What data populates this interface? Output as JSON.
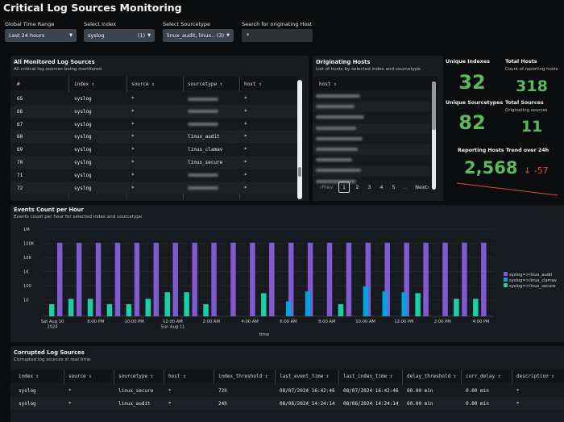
{
  "dashboard": {
    "title": "Critical Log Sources Monitoring"
  },
  "filters": {
    "time_label": "Global Time Range",
    "time_value": "Last 24 hours",
    "index_label": "Select Index",
    "index_value": "syslog",
    "index_count": "(1)",
    "sourcetype_label": "Select Sourcetype",
    "sourcetype_value": "linux_audit, linux...",
    "sourcetype_count": "(3)",
    "host_label": "Search for originating Host",
    "host_value": "*"
  },
  "monitored": {
    "title": "All Monitored Log Sources",
    "subtitle": "All critical log sources being monitored",
    "columns": [
      "#",
      "index",
      "source",
      "sourcetype",
      "host"
    ],
    "rows": [
      {
        "n": "65",
        "index": "syslog",
        "source": "*",
        "sourcetype": "",
        "host": "*"
      },
      {
        "n": "66",
        "index": "syslog",
        "source": "*",
        "sourcetype": "",
        "host": "*"
      },
      {
        "n": "67",
        "index": "syslog",
        "source": "*",
        "sourcetype": "",
        "host": "*"
      },
      {
        "n": "68",
        "index": "syslog",
        "source": "*",
        "sourcetype": "linux_audit",
        "host": "*"
      },
      {
        "n": "69",
        "index": "syslog",
        "source": "*",
        "sourcetype": "linux_clamav",
        "host": "*"
      },
      {
        "n": "70",
        "index": "syslog",
        "source": "*",
        "sourcetype": "linux_secure",
        "host": "*"
      },
      {
        "n": "71",
        "index": "syslog",
        "source": "*",
        "sourcetype": "",
        "host": "*"
      },
      {
        "n": "72",
        "index": "syslog",
        "source": "*",
        "sourcetype": "",
        "host": "*"
      }
    ]
  },
  "hosts": {
    "title": "Originating Hosts",
    "subtitle": "List of hosts by selected index and sourcetype",
    "column": "host",
    "prev": "‹Prev",
    "pages": [
      "1",
      "2",
      "3",
      "4",
      "5",
      "..."
    ],
    "current_page": "1",
    "next": "Next›"
  },
  "stats": {
    "unique_indexes_label": "Unique Indexes",
    "unique_indexes_value": "32",
    "total_hosts_label": "Total Hosts",
    "total_hosts_sub": "Count of reporting hosts",
    "total_hosts_value": "318",
    "unique_sourcetypes_label": "Unique Sourcetypes",
    "unique_sourcetypes_value": "82",
    "total_sources_label": "Total Sources",
    "total_sources_sub": "Originating sources",
    "total_sources_value": "11",
    "trend_label": "Reporting Hosts Trend over 24h",
    "trend_value": "2,568",
    "trend_delta": "-57",
    "trend_arrow": "↓",
    "colors": {
      "good": "#5cb85c",
      "bad": "#dc4e41"
    }
  },
  "chart_data": {
    "type": "bar",
    "title": "Events Count per Hour",
    "subtitle": "Events count per hour for selected index and sourcetype",
    "xlabel": "time",
    "yscale": "log",
    "ytick_labels": [
      "1M",
      "100K",
      "10K",
      "1K",
      "100",
      "10"
    ],
    "xtick_labels": [
      "Sat Aug 10\n2024",
      "8:00 PM",
      "10:00 PM",
      "12:00 AM\nSun Aug 11",
      "2:00 AM",
      "4:00 AM",
      "6:00 AM",
      "8:00 AM",
      "10:00 AM",
      "12:00 PM",
      "2:00 PM",
      "4:00 PM"
    ],
    "series": [
      {
        "name": "syslog=>linux_audit",
        "color": "#7f5ad1",
        "values": [
          110000,
          110000,
          110000,
          110000,
          110000,
          110000,
          110000,
          110000,
          110000,
          110000,
          110000,
          110000,
          110000,
          110000,
          110000,
          110000,
          110000,
          110000,
          110000,
          110000,
          110000,
          110000,
          110000
        ]
      },
      {
        "name": "syslog=>linux_clamav",
        "color": "#00a3e0",
        "values": [
          0,
          0,
          0,
          0,
          0,
          0,
          0,
          0,
          0,
          0,
          0,
          0,
          8,
          40,
          0,
          0,
          90,
          40,
          35,
          0,
          0,
          0,
          0
        ]
      },
      {
        "name": "syslog=>linux_secure",
        "color": "#1dcfa8",
        "values": [
          5,
          12,
          12,
          5,
          5,
          12,
          35,
          35,
          5,
          0,
          0,
          30,
          0,
          0,
          0,
          5,
          0,
          0,
          0,
          30,
          0,
          12,
          12
        ]
      }
    ]
  },
  "corrupted": {
    "title": "Corrupted Log Sources",
    "subtitle": "Corrupted log sources in real time",
    "columns": [
      "index",
      "source",
      "sourcetype",
      "host",
      "index_threshold",
      "last_event_time",
      "last_index_time",
      "delay_threshold",
      "curr_delay",
      "description"
    ],
    "rows": [
      {
        "index": "syslog",
        "source": "*",
        "sourcetype": "linux_secure",
        "host": "*",
        "index_threshold": "72h",
        "last_event_time": "08/07/2024 16:42:46",
        "last_index_time": "08/07/2024 16:42:46",
        "delay_threshold": "60.00 min",
        "curr_delay": "0.00 min",
        "description": "*"
      },
      {
        "index": "syslog",
        "source": "*",
        "sourcetype": "linux_audit",
        "host": "*",
        "index_threshold": "24h",
        "last_event_time": "08/06/2024 14:24:14",
        "last_index_time": "08/06/2024 14:24:14",
        "delay_threshold": "60.00 min",
        "curr_delay": "0.00 min",
        "description": "*"
      }
    ]
  }
}
